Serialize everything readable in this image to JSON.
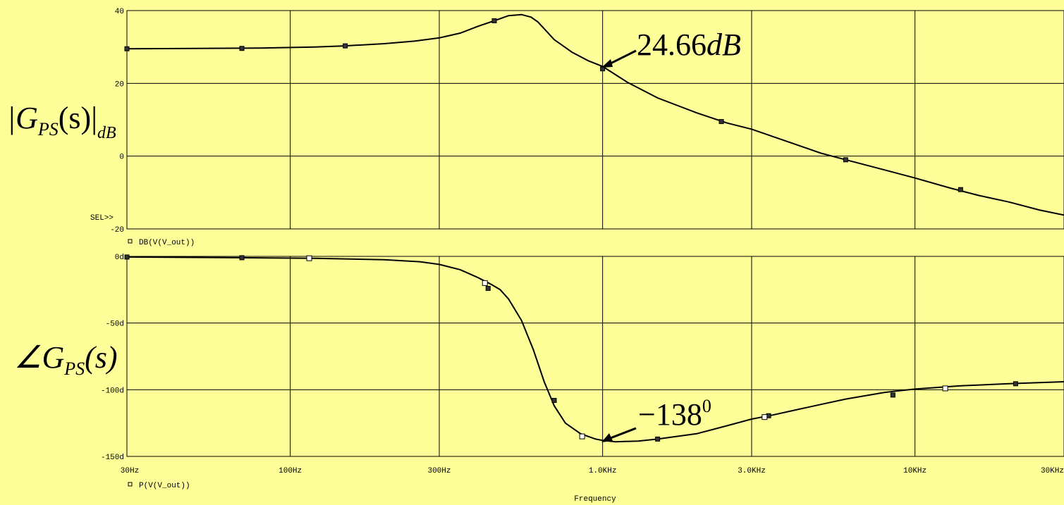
{
  "colors": {
    "background": "#ffff99",
    "plot_bg": "#ffff99",
    "axis": "#000000",
    "grid": "#000000",
    "trace": "#000000"
  },
  "chart_data": [
    {
      "type": "line",
      "xscale": "log",
      "xlim": [
        30,
        30000
      ],
      "ylim": [
        -20,
        40
      ],
      "yticks": [
        {
          "v": 40,
          "label": "40"
        },
        {
          "v": 20,
          "label": "20"
        },
        {
          "v": 0,
          "label": "0"
        },
        {
          "v": -20,
          "label": "-20"
        }
      ],
      "ylabel_parts": {
        "main": "|G",
        "sub": "PS",
        "paren": "(s)|",
        "unit": "dB"
      },
      "legend": "DB(V(V_out))",
      "sel_marker": "SEL>>",
      "series": [
        {
          "name": "DB(V(V_out))",
          "x": [
            30,
            50,
            80,
            120,
            150,
            200,
            250,
            300,
            350,
            400,
            450,
            500,
            550,
            590,
            620,
            650,
            700,
            800,
            900,
            1000,
            1200,
            1500,
            2000,
            2500,
            3000,
            4000,
            5000,
            6000,
            8000,
            10000,
            13000,
            16000,
            20000,
            25000,
            30000
          ],
          "y": [
            29.5,
            29.6,
            29.7,
            30.0,
            30.3,
            30.9,
            31.6,
            32.5,
            33.8,
            35.7,
            37.2,
            38.6,
            38.9,
            38.2,
            36.9,
            35.0,
            32.0,
            28.5,
            26.2,
            24.66,
            20.3,
            16.0,
            11.9,
            9.1,
            7.4,
            3.7,
            0.8,
            -1.0,
            -3.8,
            -6.0,
            -8.8,
            -10.8,
            -12.6,
            -14.8,
            -16.2
          ]
        }
      ],
      "markers": {
        "x": [
          30,
          70,
          150,
          450,
          1000,
          2400,
          6000,
          14000
        ],
        "y": [
          29.5,
          29.6,
          30.3,
          37.2,
          24.0,
          9.5,
          -1.0,
          -9.2
        ]
      },
      "annotation": {
        "x": 1000,
        "y": 24.66,
        "text": "24.66dB",
        "num": "24.66",
        "unit": "dB"
      }
    },
    {
      "type": "line",
      "xscale": "log",
      "xlim": [
        30,
        30000
      ],
      "ylim": [
        -150,
        0
      ],
      "yticks": [
        {
          "v": 0,
          "label": "0d"
        },
        {
          "v": -50,
          "label": "-50d"
        },
        {
          "v": -100,
          "label": "-100d"
        },
        {
          "v": -150,
          "label": "-150d"
        }
      ],
      "xticks": [
        {
          "v": 30,
          "label": "30Hz"
        },
        {
          "v": 100,
          "label": "100Hz"
        },
        {
          "v": 300,
          "label": "300Hz"
        },
        {
          "v": 1000,
          "label": "1.0KHz"
        },
        {
          "v": 3000,
          "label": "3.0KHz"
        },
        {
          "v": 10000,
          "label": "10KHz"
        },
        {
          "v": 30000,
          "label": "30KHz"
        }
      ],
      "xlabel": "Frequency",
      "ylabel_parts": {
        "main": "∠G",
        "sub": "PS",
        "paren": "(s)"
      },
      "legend": "P(V(V_out))",
      "series": [
        {
          "name": "P(V(V_out))",
          "x": [
            30,
            70,
            120,
            200,
            260,
            300,
            350,
            400,
            440,
            470,
            500,
            550,
            600,
            650,
            700,
            760,
            850,
            950,
            1000,
            1100,
            1300,
            1500,
            2000,
            2500,
            3000,
            3500,
            4000,
            5000,
            6000,
            8000,
            10000,
            14000,
            20000,
            30000
          ],
          "y": [
            -0.5,
            -1.0,
            -1.5,
            -2.5,
            -4.0,
            -6.0,
            -10.0,
            -16.0,
            -21.0,
            -25.0,
            -32.0,
            -48.0,
            -70.0,
            -94.0,
            -112.0,
            -125.0,
            -133.0,
            -137.0,
            -138.0,
            -139.0,
            -138.5,
            -137.0,
            -133.0,
            -127.0,
            -122.0,
            -119.0,
            -116.0,
            -111.0,
            -107.0,
            -102.0,
            -99.5,
            -97.0,
            -95.5,
            -94.0
          ]
        }
      ],
      "markers": {
        "x": [
          30,
          70,
          430,
          700,
          1500,
          3400,
          8500,
          21000
        ],
        "y": [
          -0.5,
          -1.0,
          -24.0,
          -108.0,
          -137.0,
          -119.5,
          -104.0,
          -95.5
        ]
      },
      "open_markers": {
        "x": [
          115,
          420,
          860,
          3300,
          12500
        ],
        "y": [
          -1.4,
          -20.0,
          -135.0,
          -120.5,
          -99.0
        ]
      },
      "annotation": {
        "x": 1000,
        "y": -138,
        "text": "-138°",
        "num": "−138",
        "sup": "0"
      }
    }
  ]
}
